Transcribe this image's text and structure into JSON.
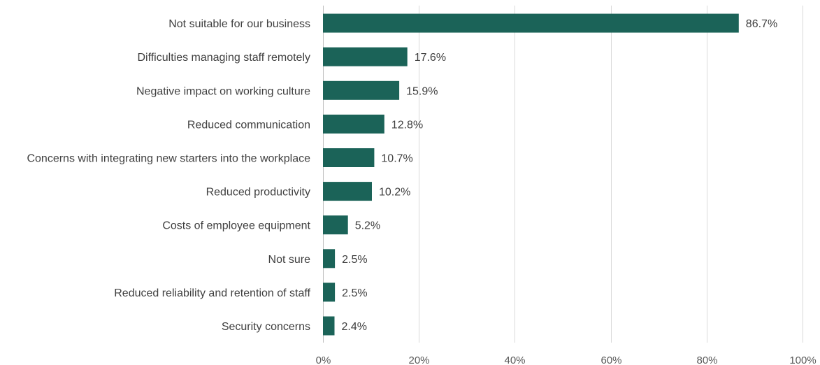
{
  "chart_data": {
    "type": "bar",
    "orientation": "horizontal",
    "categories": [
      "Not suitable for our business",
      "Difficulties managing staff remotely",
      "Negative impact on working culture",
      "Reduced communication",
      "Concerns with integrating new starters into the workplace",
      "Reduced productivity",
      "Costs of employee equipment",
      "Not sure",
      "Reduced reliability and retention of staff",
      "Security concerns"
    ],
    "values": [
      86.7,
      17.6,
      15.9,
      12.8,
      10.7,
      10.2,
      5.2,
      2.5,
      2.5,
      2.4
    ],
    "data_labels": [
      "86.7%",
      "17.6%",
      "15.9%",
      "12.8%",
      "10.7%",
      "10.2%",
      "5.2%",
      "2.5%",
      "2.5%",
      "2.4%"
    ],
    "x_ticks": [
      0,
      20,
      40,
      60,
      80,
      100
    ],
    "x_tick_labels": [
      "0%",
      "20%",
      "40%",
      "60%",
      "80%",
      "100%"
    ],
    "xlim": [
      0,
      100
    ],
    "grid": true,
    "legend": "none",
    "title": "",
    "xlabel": "",
    "ylabel": "",
    "colors": {
      "bar": "#1b6358",
      "grid": "#d9d9d9",
      "text": "#404040"
    }
  }
}
